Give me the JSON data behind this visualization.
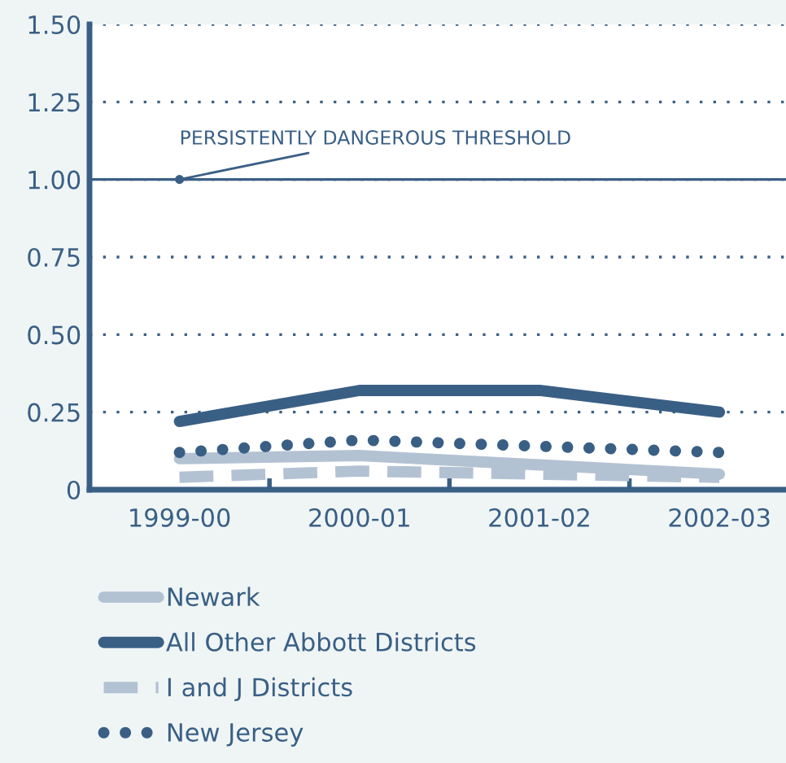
{
  "chart_data": {
    "type": "line",
    "categories": [
      "1999-00",
      "2000-01",
      "2001-02",
      "2002-03"
    ],
    "series": [
      {
        "name": "Newark",
        "color": "#b3c2d3",
        "line_style": "solid",
        "values": [
          0.1,
          0.11,
          0.08,
          0.05
        ]
      },
      {
        "name": "All Other Abbott Districts",
        "color": "#3a5f85",
        "line_style": "solid",
        "values": [
          0.22,
          0.32,
          0.32,
          0.25
        ]
      },
      {
        "name": "I and J Districts",
        "color": "#b3c2d3",
        "line_style": "dashed",
        "values": [
          0.04,
          0.06,
          0.05,
          0.04
        ]
      },
      {
        "name": "New Jersey",
        "color": "#3a5f85",
        "line_style": "dotted",
        "values": [
          0.12,
          0.16,
          0.14,
          0.12
        ]
      }
    ],
    "ylim": [
      0,
      1.5
    ],
    "yticks": [
      {
        "value": 0,
        "label": "0"
      },
      0.25,
      {
        "value": 0.5,
        "label": "0.50"
      },
      0.75,
      {
        "value": 1.0,
        "label": "1.00"
      },
      1.25,
      {
        "value": 1.5,
        "label": "1.50"
      }
    ],
    "grid": "y",
    "legend": "bottom",
    "marker": "none",
    "ref_lines": [
      {
        "axis": "y",
        "value": 1.0,
        "label": "PERSISTENTLY DANGEROUS THRESHOLD",
        "color": "#3a5f85",
        "line_style": "solid"
      }
    ]
  }
}
